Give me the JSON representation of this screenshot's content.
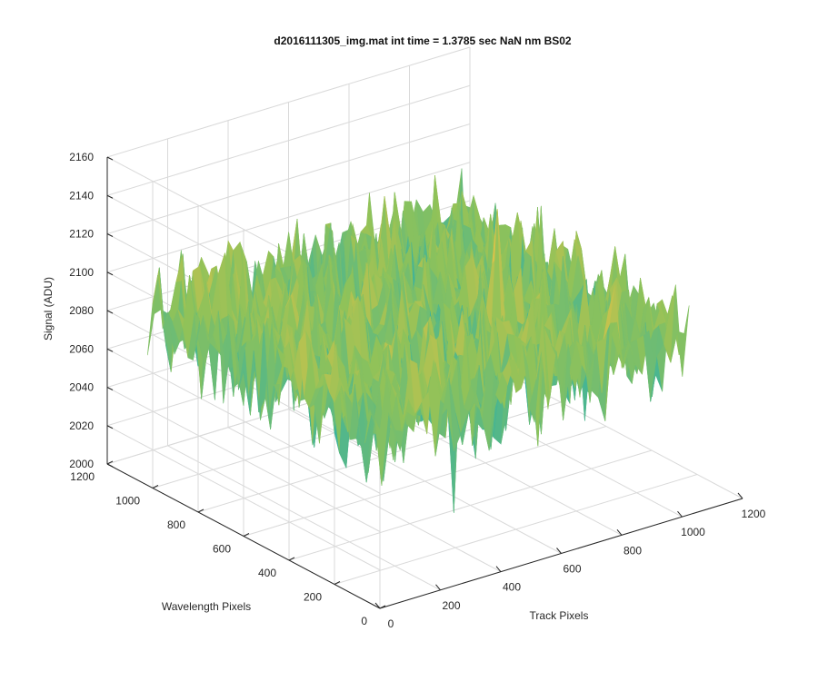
{
  "chart_data": {
    "type": "surface",
    "title": "d2016111305_img.mat int time = 1.3785 sec  NaN nm BS02",
    "xlabel": "Track Pixels",
    "ylabel": "Wavelength Pixels",
    "zlabel": "Signal (ADU)",
    "xlim": [
      0,
      1200
    ],
    "ylim": [
      0,
      1200
    ],
    "zlim": [
      2000,
      2160
    ],
    "xticks": [
      "0",
      "200",
      "400",
      "600",
      "800",
      "1000",
      "1200"
    ],
    "yticks": [
      "0",
      "200",
      "400",
      "600",
      "800",
      "1000",
      "1200"
    ],
    "zticks": [
      "2000",
      "2020",
      "2040",
      "2060",
      "2080",
      "2100",
      "2120",
      "2140",
      "2160"
    ],
    "data_extent": {
      "x": [
        1,
        1024
      ],
      "y": [
        1,
        1024
      ]
    },
    "signal_mean": 2090,
    "signal_range": [
      2015,
      2150
    ],
    "colormap": [
      "#0072BD",
      "#1B9FC9",
      "#3DB39B",
      "#8EC25A",
      "#D7C24A",
      "#F5C13C"
    ],
    "grid": true
  }
}
